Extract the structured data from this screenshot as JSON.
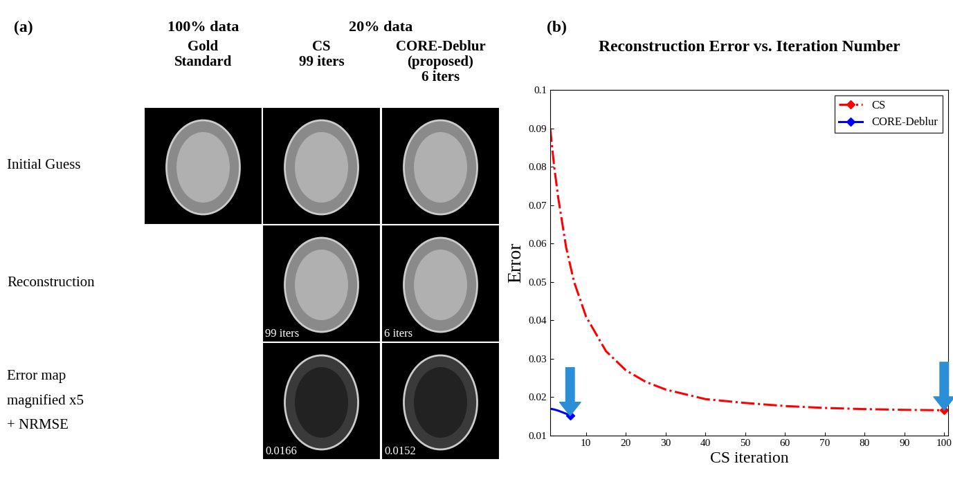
{
  "panel_a": {
    "label": "(a)",
    "groups": [
      {
        "text": "100% data",
        "columns": [
          0
        ]
      },
      {
        "text": "20% data",
        "columns": [
          1,
          2
        ]
      }
    ],
    "columns": [
      [
        "Gold",
        "Standard"
      ],
      [
        "CS",
        "99 iters"
      ],
      [
        "CORE-Deblur",
        "(proposed)",
        "6 iters"
      ]
    ],
    "rows": [
      {
        "label": [
          "Initial Guess"
        ],
        "cells": [
          {
            "caption": null
          },
          {
            "caption": null
          },
          {
            "caption": null
          }
        ]
      },
      {
        "label": [
          "Reconstruction"
        ],
        "cells": [
          null,
          {
            "caption": "99 iters"
          },
          {
            "caption": "6 iters"
          }
        ]
      },
      {
        "label": [
          "Error map",
          "magnified x5",
          "+ NRMSE"
        ],
        "cells": [
          null,
          {
            "caption": "0.0166"
          },
          {
            "caption": "0.0152"
          }
        ]
      }
    ]
  },
  "chart_data": {
    "type": "line",
    "panel_label": "(b)",
    "title": "Reconstruction Error vs. Iteration Number",
    "x_label": "CS iteration",
    "y_label": "Error",
    "xlim": [
      1,
      101
    ],
    "ylim": [
      0.01,
      0.1
    ],
    "xticks": [
      10,
      20,
      30,
      40,
      50,
      60,
      70,
      80,
      90,
      100
    ],
    "yticks": [
      0.01,
      0.02,
      0.03,
      0.04,
      0.05,
      0.06,
      0.07,
      0.08,
      0.09,
      0.1
    ],
    "legend": "upper right",
    "series": [
      {
        "name": "CS",
        "color": "#ff0000",
        "line_style": "dashdot",
        "marker": "diamond",
        "x": [
          1,
          2,
          3,
          5,
          7,
          10,
          15,
          20,
          25,
          30,
          40,
          50,
          60,
          70,
          80,
          90,
          100
        ],
        "values": [
          0.09,
          0.08,
          0.072,
          0.059,
          0.05,
          0.041,
          0.032,
          0.027,
          0.024,
          0.022,
          0.0195,
          0.0185,
          0.0177,
          0.0172,
          0.0169,
          0.0167,
          0.0166
        ]
      },
      {
        "name": "CORE-Deblur",
        "color": "#0000ff",
        "line_style": "solid",
        "marker": "diamond",
        "x": [
          1,
          2,
          3,
          4,
          5,
          6
        ],
        "values": [
          0.017,
          0.0168,
          0.0165,
          0.0161,
          0.0157,
          0.0152
        ]
      }
    ]
  }
}
